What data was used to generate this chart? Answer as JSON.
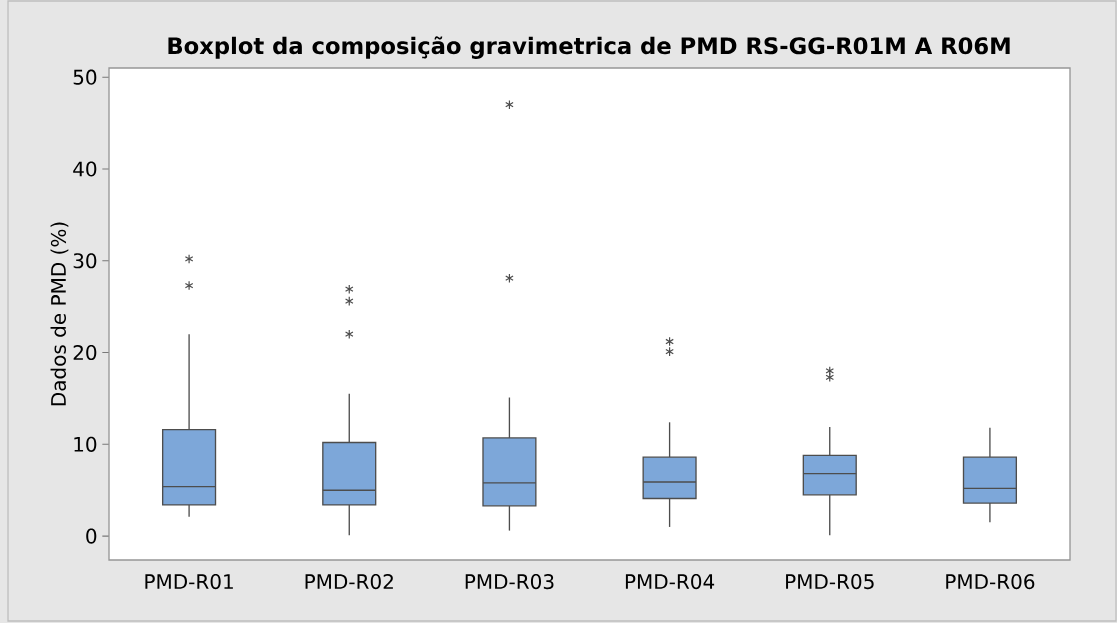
{
  "chart_data": {
    "type": "box",
    "title": "Boxplot da composição gravimetrica de PMD RS-GG-R01M A R06M",
    "ylabel": "Dados de PMD (%)",
    "categories": [
      "PMD-R01",
      "PMD-R02",
      "PMD-R03",
      "PMD-R04",
      "PMD-R05",
      "PMD-R06"
    ],
    "color": "#7da7d9",
    "boxes": [
      {
        "low": 2.1,
        "q1": 3.4,
        "median": 5.4,
        "q3": 11.6,
        "high": 22.0,
        "outliers": [
          30.2,
          27.3
        ]
      },
      {
        "low": 0.1,
        "q1": 3.4,
        "median": 5.0,
        "q3": 10.2,
        "high": 15.5,
        "outliers": [
          26.9,
          25.6,
          22.0
        ]
      },
      {
        "low": 0.6,
        "q1": 3.3,
        "median": 5.8,
        "q3": 10.7,
        "high": 15.1,
        "outliers": [
          47.0,
          28.1
        ]
      },
      {
        "low": 1.0,
        "q1": 4.1,
        "median": 5.9,
        "q3": 8.6,
        "high": 12.4,
        "outliers": [
          21.2,
          20.1
        ]
      },
      {
        "low": 0.1,
        "q1": 4.5,
        "median": 6.8,
        "q3": 8.8,
        "high": 11.9,
        "outliers": [
          18.0,
          17.3
        ]
      },
      {
        "low": 1.5,
        "q1": 3.6,
        "median": 5.2,
        "q3": 8.6,
        "high": 11.8
      }
    ],
    "ylim": [
      -2.6,
      51
    ],
    "yticks": [
      0,
      10,
      20,
      30,
      40,
      50
    ],
    "grid": false
  }
}
